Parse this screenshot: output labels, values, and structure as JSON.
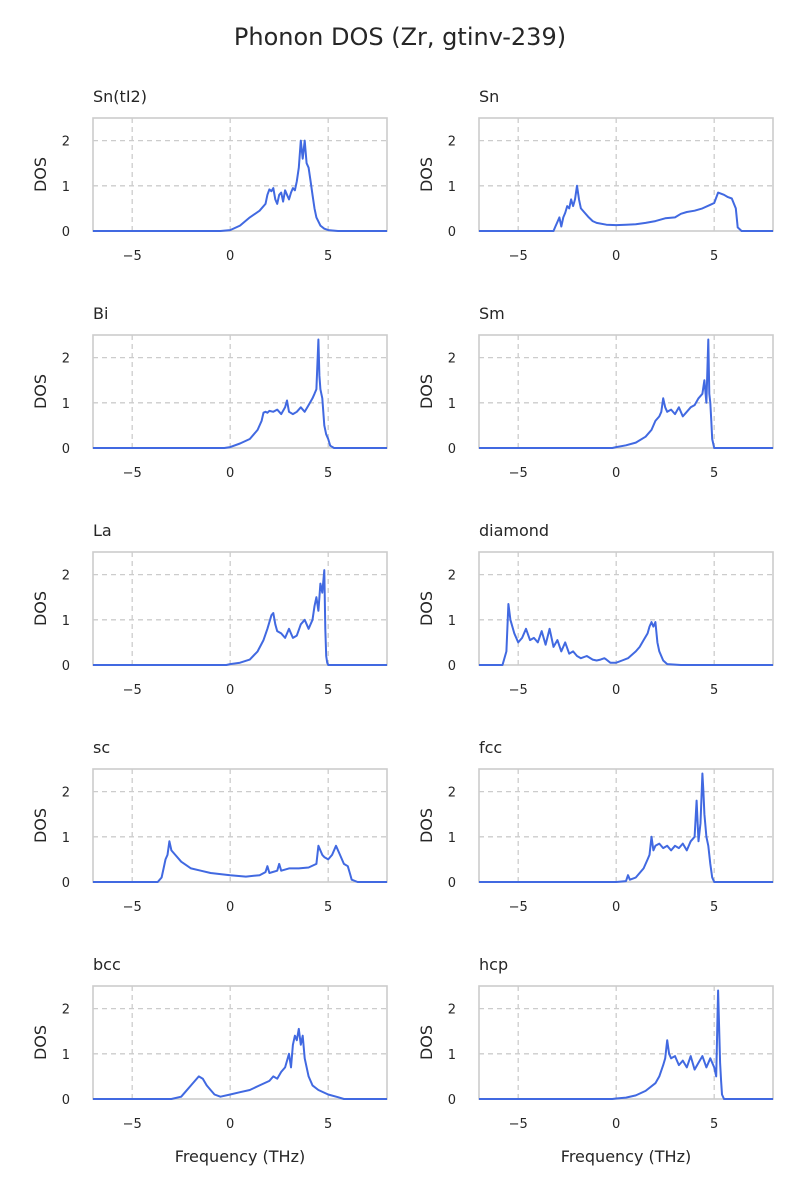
{
  "figure": {
    "title": "Phonon DOS (Zr, gtinv-239)",
    "line_color": "#4169e1"
  },
  "chart_data": [
    {
      "type": "line",
      "title": "Sn(tI2)",
      "xlabel": "",
      "ylabel": "DOS",
      "xlim": [
        -7,
        8
      ],
      "ylim": [
        0,
        2.5
      ],
      "xticks": [
        -5,
        0,
        5
      ],
      "yticks": [
        0,
        1,
        2
      ],
      "grid": true,
      "x": [
        -7,
        -0.5,
        0,
        0.5,
        1,
        1.5,
        1.8,
        1.9,
        2,
        2.1,
        2.2,
        2.3,
        2.4,
        2.5,
        2.6,
        2.7,
        2.8,
        2.9,
        3,
        3.1,
        3.2,
        3.3,
        3.4,
        3.5,
        3.6,
        3.7,
        3.8,
        3.9,
        4,
        4.1,
        4.2,
        4.3,
        4.4,
        4.6,
        4.8,
        5,
        5.5,
        8
      ],
      "y": [
        0,
        0,
        0.02,
        0.12,
        0.3,
        0.45,
        0.6,
        0.8,
        0.92,
        0.88,
        0.95,
        0.7,
        0.6,
        0.8,
        0.85,
        0.65,
        0.9,
        0.8,
        0.7,
        0.85,
        0.95,
        0.9,
        1.1,
        1.4,
        2.0,
        1.6,
        2.0,
        1.5,
        1.4,
        1.1,
        0.8,
        0.5,
        0.3,
        0.12,
        0.05,
        0.02,
        0,
        0
      ]
    },
    {
      "type": "line",
      "title": "Sn",
      "xlabel": "",
      "ylabel": "DOS",
      "xlim": [
        -7,
        8
      ],
      "ylim": [
        0,
        2.5
      ],
      "xticks": [
        -5,
        0,
        5
      ],
      "yticks": [
        0,
        1,
        2
      ],
      "grid": true,
      "x": [
        -7,
        -3.2,
        -3.1,
        -3,
        -2.9,
        -2.8,
        -2.7,
        -2.6,
        -2.5,
        -2.4,
        -2.3,
        -2.2,
        -2.1,
        -2,
        -1.9,
        -1.8,
        -1.6,
        -1.4,
        -1.2,
        -1,
        -0.5,
        0,
        0.5,
        1,
        1.5,
        2,
        2.5,
        3,
        3.3,
        3.6,
        4,
        4.4,
        4.8,
        5,
        5.2,
        5.5,
        5.7,
        5.9,
        6.1,
        6.2,
        6.4,
        8
      ],
      "y": [
        0,
        0,
        0.1,
        0.2,
        0.3,
        0.1,
        0.3,
        0.4,
        0.55,
        0.5,
        0.7,
        0.55,
        0.7,
        1.0,
        0.7,
        0.5,
        0.4,
        0.3,
        0.22,
        0.18,
        0.14,
        0.13,
        0.14,
        0.15,
        0.18,
        0.22,
        0.28,
        0.3,
        0.38,
        0.42,
        0.45,
        0.5,
        0.58,
        0.62,
        0.85,
        0.8,
        0.75,
        0.72,
        0.5,
        0.08,
        0,
        0
      ]
    },
    {
      "type": "line",
      "title": "Bi",
      "xlabel": "",
      "ylabel": "DOS",
      "xlim": [
        -7,
        8
      ],
      "ylim": [
        0,
        2.5
      ],
      "xticks": [
        -5,
        0,
        5
      ],
      "yticks": [
        0,
        1,
        2
      ],
      "grid": true,
      "x": [
        -7,
        -0.3,
        0,
        0.5,
        1,
        1.4,
        1.6,
        1.7,
        1.8,
        1.9,
        2,
        2.2,
        2.4,
        2.6,
        2.8,
        2.9,
        3,
        3.2,
        3.4,
        3.6,
        3.8,
        4,
        4.2,
        4.3,
        4.4,
        4.5,
        4.55,
        4.6,
        4.7,
        4.8,
        4.9,
        5,
        5.1,
        5.3,
        8
      ],
      "y": [
        0,
        0,
        0.02,
        0.1,
        0.2,
        0.4,
        0.6,
        0.78,
        0.8,
        0.78,
        0.82,
        0.8,
        0.85,
        0.75,
        0.9,
        1.05,
        0.8,
        0.75,
        0.8,
        0.9,
        0.8,
        0.95,
        1.1,
        1.2,
        1.3,
        2.4,
        1.6,
        1.3,
        1.1,
        0.5,
        0.3,
        0.2,
        0.05,
        0,
        0
      ]
    },
    {
      "type": "line",
      "title": "Sm",
      "xlabel": "",
      "ylabel": "DOS",
      "xlim": [
        -7,
        8
      ],
      "ylim": [
        0,
        2.5
      ],
      "xticks": [
        -5,
        0,
        5
      ],
      "yticks": [
        0,
        1,
        2
      ],
      "grid": true,
      "x": [
        -7,
        -0.2,
        0,
        0.5,
        1,
        1.5,
        1.8,
        2,
        2.2,
        2.3,
        2.4,
        2.5,
        2.6,
        2.8,
        3,
        3.2,
        3.4,
        3.6,
        3.8,
        4,
        4.2,
        4.4,
        4.5,
        4.6,
        4.7,
        4.75,
        4.8,
        4.85,
        4.9,
        5,
        8
      ],
      "y": [
        0,
        0,
        0.02,
        0.06,
        0.12,
        0.25,
        0.4,
        0.6,
        0.7,
        0.8,
        1.1,
        0.9,
        0.8,
        0.85,
        0.75,
        0.9,
        0.7,
        0.8,
        0.9,
        0.95,
        1.1,
        1.2,
        1.5,
        1.0,
        2.4,
        1.2,
        1.0,
        0.6,
        0.2,
        0,
        0
      ]
    },
    {
      "type": "line",
      "title": "La",
      "xlabel": "",
      "ylabel": "DOS",
      "xlim": [
        -7,
        8
      ],
      "ylim": [
        0,
        2.5
      ],
      "xticks": [
        -5,
        0,
        5
      ],
      "yticks": [
        0,
        1,
        2
      ],
      "grid": true,
      "x": [
        -7,
        -0.2,
        0,
        0.5,
        1,
        1.4,
        1.7,
        1.9,
        2.1,
        2.2,
        2.3,
        2.4,
        2.6,
        2.8,
        3,
        3.2,
        3.4,
        3.6,
        3.8,
        4,
        4.2,
        4.3,
        4.4,
        4.5,
        4.6,
        4.7,
        4.8,
        4.85,
        4.9,
        4.95,
        5,
        8
      ],
      "y": [
        0,
        0,
        0.02,
        0.05,
        0.12,
        0.3,
        0.55,
        0.8,
        1.1,
        1.15,
        0.9,
        0.75,
        0.7,
        0.6,
        0.8,
        0.6,
        0.65,
        0.9,
        1.0,
        0.8,
        1.0,
        1.3,
        1.5,
        1.2,
        1.8,
        1.6,
        2.1,
        0.8,
        0.2,
        0.05,
        0,
        0
      ]
    },
    {
      "type": "line",
      "title": "diamond",
      "xlabel": "",
      "ylabel": "DOS",
      "xlim": [
        -7,
        8
      ],
      "ylim": [
        0,
        2.5
      ],
      "xticks": [
        -5,
        0,
        5
      ],
      "yticks": [
        0,
        1,
        2
      ],
      "grid": true,
      "x": [
        -7,
        -6.3,
        -5.8,
        -5.6,
        -5.5,
        -5.4,
        -5.2,
        -5,
        -4.8,
        -4.6,
        -4.4,
        -4.2,
        -4,
        -3.8,
        -3.6,
        -3.4,
        -3.2,
        -3,
        -2.8,
        -2.6,
        -2.4,
        -2.2,
        -2,
        -1.8,
        -1.5,
        -1.2,
        -1,
        -0.8,
        -0.6,
        -0.5,
        -0.3,
        0,
        0.3,
        0.6,
        1,
        1.2,
        1.4,
        1.6,
        1.7,
        1.8,
        1.9,
        2,
        2.1,
        2.2,
        2.4,
        2.6,
        3.3,
        8
      ],
      "y": [
        0,
        0,
        0,
        0.3,
        1.35,
        1.0,
        0.7,
        0.5,
        0.6,
        0.8,
        0.55,
        0.6,
        0.5,
        0.75,
        0.45,
        0.8,
        0.4,
        0.55,
        0.3,
        0.5,
        0.25,
        0.3,
        0.2,
        0.15,
        0.2,
        0.12,
        0.1,
        0.12,
        0.15,
        0.12,
        0.05,
        0.05,
        0.1,
        0.15,
        0.3,
        0.4,
        0.55,
        0.7,
        0.85,
        0.95,
        0.85,
        0.95,
        0.5,
        0.3,
        0.1,
        0.02,
        0,
        0
      ]
    },
    {
      "type": "line",
      "title": "sc",
      "xlabel": "",
      "ylabel": "DOS",
      "xlim": [
        -7,
        8
      ],
      "ylim": [
        0,
        2.5
      ],
      "xticks": [
        -5,
        0,
        5
      ],
      "yticks": [
        0,
        1,
        2
      ],
      "grid": true,
      "x": [
        -7,
        -4.5,
        -3.7,
        -3.5,
        -3.4,
        -3.3,
        -3.2,
        -3.1,
        -3,
        -2.8,
        -2.5,
        -2,
        -1.5,
        -1,
        0,
        0.8,
        1.5,
        1.8,
        1.9,
        2,
        2.4,
        2.5,
        2.6,
        3,
        3.5,
        4,
        4.4,
        4.5,
        4.7,
        4.8,
        5,
        5.2,
        5.4,
        5.6,
        5.8,
        6,
        6.1,
        6.2,
        6.5,
        8
      ],
      "y": [
        0,
        0,
        0,
        0.1,
        0.3,
        0.5,
        0.6,
        0.9,
        0.7,
        0.6,
        0.45,
        0.3,
        0.25,
        0.2,
        0.15,
        0.12,
        0.15,
        0.22,
        0.35,
        0.2,
        0.25,
        0.4,
        0.25,
        0.3,
        0.3,
        0.32,
        0.4,
        0.8,
        0.6,
        0.55,
        0.5,
        0.6,
        0.8,
        0.6,
        0.4,
        0.35,
        0.2,
        0.05,
        0,
        0
      ]
    },
    {
      "type": "line",
      "title": "fcc",
      "xlabel": "",
      "ylabel": "DOS",
      "xlim": [
        -7,
        8
      ],
      "ylim": [
        0,
        2.5
      ],
      "xticks": [
        -5,
        0,
        5
      ],
      "yticks": [
        0,
        1,
        2
      ],
      "grid": true,
      "x": [
        -7,
        0,
        0.5,
        0.6,
        0.7,
        1,
        1.4,
        1.6,
        1.7,
        1.8,
        1.9,
        2,
        2.2,
        2.4,
        2.6,
        2.8,
        3,
        3.2,
        3.4,
        3.6,
        3.8,
        4,
        4.1,
        4.2,
        4.3,
        4.4,
        4.45,
        4.5,
        4.6,
        4.7,
        4.8,
        4.9,
        5,
        8
      ],
      "y": [
        0,
        0,
        0.02,
        0.15,
        0.05,
        0.1,
        0.3,
        0.5,
        0.6,
        1.0,
        0.7,
        0.8,
        0.85,
        0.75,
        0.8,
        0.7,
        0.8,
        0.75,
        0.85,
        0.7,
        0.9,
        1.0,
        1.8,
        0.9,
        1.3,
        2.4,
        2.0,
        1.5,
        1.0,
        0.8,
        0.4,
        0.1,
        0,
        0
      ]
    },
    {
      "type": "line",
      "title": "bcc",
      "xlabel": "Frequency (THz)",
      "ylabel": "DOS",
      "xlim": [
        -7,
        8
      ],
      "ylim": [
        0,
        2.5
      ],
      "xticks": [
        -5,
        0,
        5
      ],
      "yticks": [
        0,
        1,
        2
      ],
      "grid": true,
      "x": [
        -7,
        -3,
        -2.5,
        -2.3,
        -2,
        -1.8,
        -1.6,
        -1.4,
        -1.2,
        -1,
        -0.8,
        -0.5,
        0,
        0.5,
        1,
        1.5,
        2,
        2.2,
        2.4,
        2.6,
        2.8,
        3,
        3.1,
        3.2,
        3.3,
        3.4,
        3.5,
        3.6,
        3.7,
        3.8,
        4,
        4.2,
        4.5,
        5,
        5.5,
        5.8,
        6,
        8
      ],
      "y": [
        0,
        0,
        0.05,
        0.15,
        0.3,
        0.4,
        0.5,
        0.45,
        0.3,
        0.2,
        0.1,
        0.05,
        0.1,
        0.15,
        0.2,
        0.3,
        0.4,
        0.5,
        0.45,
        0.6,
        0.7,
        1.0,
        0.7,
        1.2,
        1.4,
        1.3,
        1.55,
        1.2,
        1.4,
        0.9,
        0.5,
        0.3,
        0.2,
        0.1,
        0.04,
        0,
        0,
        0
      ]
    },
    {
      "type": "line",
      "title": "hcp",
      "xlabel": "Frequency (THz)",
      "ylabel": "DOS",
      "xlim": [
        -7,
        8
      ],
      "ylim": [
        0,
        2.5
      ],
      "xticks": [
        -5,
        0,
        5
      ],
      "yticks": [
        0,
        1,
        2
      ],
      "grid": true,
      "x": [
        -7,
        -0.2,
        0,
        0.5,
        1,
        1.5,
        2,
        2.2,
        2.4,
        2.5,
        2.6,
        2.7,
        2.8,
        3,
        3.2,
        3.4,
        3.6,
        3.8,
        4,
        4.2,
        4.4,
        4.6,
        4.8,
        5,
        5.1,
        5.2,
        5.25,
        5.3,
        5.35,
        5.4,
        5.5,
        5.8,
        8
      ],
      "y": [
        0,
        0,
        0.01,
        0.03,
        0.08,
        0.18,
        0.35,
        0.5,
        0.75,
        0.9,
        1.3,
        1.0,
        0.9,
        0.95,
        0.75,
        0.85,
        0.7,
        0.95,
        0.65,
        0.8,
        0.95,
        0.7,
        0.9,
        0.7,
        0.5,
        2.4,
        1.6,
        0.8,
        0.4,
        0.1,
        0,
        0,
        0
      ]
    }
  ]
}
